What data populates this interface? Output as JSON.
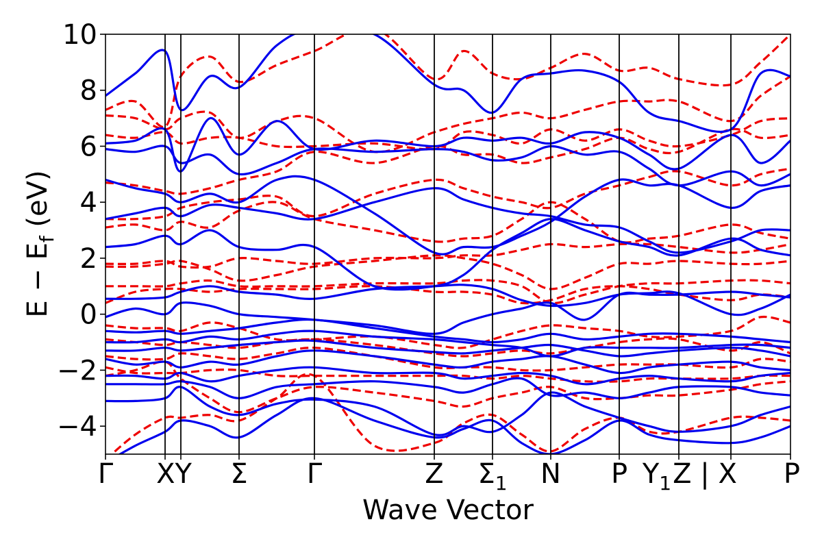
{
  "chart_data": {
    "type": "line",
    "title": "",
    "xlabel": "Wave Vector",
    "ylabel": "E − E_f (eV)",
    "ylabel_parts": {
      "main": "E − E",
      "sub": "f",
      "unit": " (eV)"
    },
    "ylim": [
      -5,
      10
    ],
    "yticks": [
      -4,
      -2,
      0,
      2,
      4,
      6,
      8,
      10
    ],
    "ytick_labels": [
      "−4",
      "−2",
      "0",
      "2",
      "4",
      "6",
      "8",
      "10"
    ],
    "xlim": [
      0,
      10
    ],
    "high_symmetry_points": [
      {
        "label": "Γ",
        "x": 0.0
      },
      {
        "label": "X",
        "x": 0.87
      },
      {
        "label": "Y",
        "x": 1.1
      },
      {
        "label": "Σ",
        "x": 1.95
      },
      {
        "label": "Γ",
        "x": 3.05
      },
      {
        "label": "Z",
        "x": 4.8
      },
      {
        "label": "Σ₁",
        "x": 5.65
      },
      {
        "label": "N",
        "x": 6.5
      },
      {
        "label": "P",
        "x": 7.5
      },
      {
        "label": "Y₁",
        "x": 8.37
      },
      {
        "label": "Z",
        "x": 8.37
      },
      {
        "label": "X",
        "x": 9.13
      },
      {
        "label": "P",
        "x": 10.0
      }
    ],
    "xtick_labels_display": [
      {
        "text": "Γ",
        "x": 0.0
      },
      {
        "text": "XY",
        "x": 1.0
      },
      {
        "text": "Σ",
        "x": 1.95
      },
      {
        "text": "Γ",
        "x": 3.05
      },
      {
        "text": "Z",
        "x": 4.8
      },
      {
        "text": "Σ",
        "sub": "1",
        "x": 5.65
      },
      {
        "text": "N",
        "x": 6.5
      },
      {
        "text": "P",
        "x": 7.5
      },
      {
        "text": "Y",
        "sub": "1",
        "x": 8.05
      },
      {
        "text": "Z | X",
        "x": 8.75
      },
      {
        "text": "P",
        "x": 10.0
      }
    ],
    "vlines": [
      0.87,
      1.1,
      1.95,
      3.05,
      4.8,
      5.65,
      6.5,
      7.5,
      8.37,
      9.13
    ],
    "x": [
      0.0,
      0.435,
      0.87,
      1.1,
      1.525,
      1.95,
      2.5,
      3.05,
      3.925,
      4.8,
      5.225,
      5.65,
      6.075,
      6.5,
      7.0,
      7.5,
      7.935,
      8.37,
      9.13,
      9.565,
      10.0
    ],
    "series": [
      {
        "style": "solid",
        "color": "#0000ee",
        "values": [
          -5.3,
          -4.7,
          -4.2,
          -3.8,
          -4.0,
          -4.4,
          -3.6,
          -3.0,
          -3.8,
          -4.4,
          -4.1,
          -3.8,
          -4.6,
          -5.0,
          -4.5,
          -3.8,
          -4.3,
          -4.5,
          -4.6,
          -4.4,
          -4.0
        ]
      },
      {
        "style": "solid",
        "color": "#0000ee",
        "values": [
          -3.1,
          -3.1,
          -3.0,
          -2.6,
          -3.3,
          -3.6,
          -3.2,
          -3.05,
          -3.3,
          -4.3,
          -4.0,
          -4.2,
          -3.6,
          -2.8,
          -3.3,
          -3.7,
          -4.0,
          -4.2,
          -4.0,
          -3.6,
          -3.3
        ]
      },
      {
        "style": "solid",
        "color": "#0000ee",
        "values": [
          -2.5,
          -2.5,
          -2.5,
          -2.4,
          -2.6,
          -3.0,
          -2.6,
          -2.5,
          -2.4,
          -2.6,
          -2.8,
          -2.5,
          -2.3,
          -2.9,
          -2.8,
          -3.0,
          -2.8,
          -2.6,
          -2.6,
          -2.8,
          -2.9
        ]
      },
      {
        "style": "solid",
        "color": "#0000ee",
        "values": [
          -2.2,
          -2.2,
          -2.3,
          -2.1,
          -2.4,
          -2.2,
          -2.0,
          -1.9,
          -2.1,
          -2.1,
          -2.3,
          -2.2,
          -2.1,
          -2.2,
          -2.5,
          -2.3,
          -2.2,
          -2.3,
          -2.4,
          -2.2,
          -2.1
        ]
      },
      {
        "style": "solid",
        "color": "#0000ee",
        "values": [
          -1.6,
          -1.8,
          -1.7,
          -1.9,
          -1.7,
          -1.8,
          -1.5,
          -1.3,
          -1.5,
          -1.8,
          -1.9,
          -1.7,
          -1.6,
          -1.5,
          -1.8,
          -2.1,
          -1.9,
          -1.8,
          -1.7,
          -1.9,
          -2.0
        ]
      },
      {
        "style": "solid",
        "color": "#0000ee",
        "values": [
          -1.3,
          -1.3,
          -1.2,
          -1.3,
          -1.2,
          -1.1,
          -1.0,
          -0.95,
          -1.2,
          -1.35,
          -1.4,
          -1.3,
          -1.2,
          -1.1,
          -1.3,
          -1.5,
          -1.4,
          -1.3,
          -1.2,
          -1.3,
          -1.5
        ]
      },
      {
        "style": "solid",
        "color": "#0000ee",
        "values": [
          -1.0,
          -1.0,
          -0.9,
          -1.0,
          -0.8,
          -0.9,
          -0.7,
          -0.6,
          -0.8,
          -0.9,
          -1.0,
          -1.1,
          -1.2,
          -1.5,
          -1.2,
          -1.2,
          -1.2,
          -1.2,
          -1.1,
          -1.1,
          -1.2
        ]
      },
      {
        "style": "solid",
        "color": "#0000ee",
        "values": [
          -0.6,
          -0.65,
          -0.6,
          -0.7,
          -0.6,
          -0.5,
          -0.3,
          -0.2,
          -0.5,
          -0.8,
          -0.9,
          -1.0,
          -0.9,
          -0.7,
          -0.9,
          -0.8,
          -0.7,
          -0.7,
          -0.8,
          -0.9,
          -1.0
        ]
      },
      {
        "style": "solid",
        "color": "#0000ee",
        "values": [
          -0.1,
          0.2,
          0.0,
          0.4,
          0.3,
          0.0,
          -0.1,
          -0.2,
          -0.4,
          -0.7,
          -0.3,
          0.0,
          0.2,
          0.4,
          -0.2,
          0.7,
          0.7,
          0.7,
          0.8,
          0.7,
          0.6
        ]
      },
      {
        "style": "solid",
        "color": "#0000ee",
        "values": [
          0.55,
          0.55,
          0.6,
          0.8,
          1.0,
          0.8,
          0.7,
          0.55,
          0.9,
          1.0,
          1.05,
          0.9,
          0.5,
          0.3,
          0.4,
          0.7,
          0.75,
          0.75,
          0.0,
          0.2,
          0.7
        ]
      },
      {
        "style": "solid",
        "color": "#0000ee",
        "values": [
          2.4,
          2.5,
          2.8,
          2.5,
          3.0,
          2.4,
          2.3,
          2.4,
          1.0,
          1.0,
          1.4,
          2.3,
          2.9,
          3.4,
          3.0,
          2.6,
          2.4,
          2.1,
          2.7,
          2.3,
          2.1
        ]
      },
      {
        "style": "solid",
        "color": "#0000ee",
        "values": [
          3.4,
          3.6,
          3.8,
          3.5,
          3.9,
          3.8,
          3.6,
          3.4,
          4.0,
          4.5,
          4.1,
          3.8,
          3.6,
          3.5,
          3.2,
          3.1,
          2.6,
          2.2,
          2.6,
          3.0,
          3.0
        ]
      },
      {
        "style": "solid",
        "color": "#0000ee",
        "values": [
          4.8,
          4.5,
          4.3,
          4.0,
          4.3,
          4.0,
          4.8,
          4.8,
          3.6,
          2.2,
          2.4,
          2.4,
          2.8,
          3.3,
          4.2,
          4.8,
          4.6,
          4.6,
          3.8,
          4.4,
          4.6
        ]
      },
      {
        "style": "solid",
        "color": "#0000ee",
        "values": [
          5.9,
          5.8,
          6.0,
          5.4,
          5.7,
          5.0,
          5.4,
          5.9,
          5.8,
          5.9,
          5.8,
          5.5,
          5.6,
          6.0,
          5.7,
          5.8,
          5.2,
          4.6,
          5.1,
          4.6,
          5.0
        ]
      },
      {
        "style": "solid",
        "color": "#0000ee",
        "values": [
          6.1,
          6.2,
          6.6,
          5.1,
          7.0,
          5.7,
          6.9,
          5.9,
          6.2,
          6.0,
          6.3,
          6.2,
          6.3,
          6.1,
          6.5,
          6.3,
          5.7,
          5.2,
          6.4,
          5.4,
          6.2
        ]
      },
      {
        "style": "solid",
        "color": "#0000ee",
        "values": [
          7.8,
          8.6,
          9.4,
          7.3,
          8.5,
          8.1,
          9.6,
          10.2,
          10.0,
          8.2,
          8.0,
          7.2,
          8.4,
          8.6,
          8.7,
          8.3,
          7.2,
          6.9,
          6.6,
          8.6,
          8.5
        ]
      },
      {
        "style": "dashed",
        "color": "#ee0000",
        "values": [
          -5.2,
          -4.3,
          -3.7,
          -3.7,
          -3.6,
          -3.8,
          -3.0,
          -2.2,
          -4.7,
          -4.6,
          -3.9,
          -3.6,
          -4.3,
          -4.9,
          -4.1,
          -3.7,
          -4.2,
          -4.2,
          -3.7,
          -3.7,
          -3.8
        ]
      },
      {
        "style": "dashed",
        "color": "#ee0000",
        "values": [
          -2.2,
          -2.0,
          -1.7,
          -2.3,
          -3.0,
          -3.5,
          -3.0,
          -2.6,
          -2.8,
          -3.1,
          -3.3,
          -3.0,
          -2.8,
          -2.6,
          -3.0,
          -3.0,
          -2.9,
          -2.9,
          -2.7,
          -2.5,
          -2.4
        ]
      },
      {
        "style": "dashed",
        "color": "#ee0000",
        "values": [
          -1.9,
          -2.1,
          -2.1,
          -2.1,
          -2.0,
          -2.0,
          -2.2,
          -2.2,
          -2.2,
          -2.2,
          -2.2,
          -2.3,
          -2.2,
          -2.3,
          -2.4,
          -2.4,
          -2.3,
          -2.3,
          -2.3,
          -2.2,
          -2.2
        ]
      },
      {
        "style": "dashed",
        "color": "#ee0000",
        "values": [
          -1.5,
          -1.6,
          -1.6,
          -1.4,
          -1.5,
          -1.6,
          -1.4,
          -1.2,
          -1.5,
          -1.9,
          -1.9,
          -1.9,
          -2.0,
          -2.0,
          -1.9,
          -1.8,
          -1.8,
          -1.8,
          -1.9,
          -1.6,
          -1.7
        ]
      },
      {
        "style": "dashed",
        "color": "#ee0000",
        "values": [
          -0.9,
          -1.0,
          -1.1,
          -1.0,
          -1.1,
          -1.2,
          -1.0,
          -0.9,
          -1.1,
          -1.4,
          -1.5,
          -1.4,
          -1.3,
          -1.4,
          -1.2,
          -1.0,
          -0.9,
          -0.9,
          -1.3,
          -1.0,
          -1.4
        ]
      },
      {
        "style": "dashed",
        "color": "#ee0000",
        "values": [
          -0.4,
          -0.5,
          -0.5,
          -0.6,
          -0.3,
          -0.5,
          -0.9,
          -0.9,
          -0.8,
          -1.1,
          -1.2,
          -0.9,
          -0.6,
          -0.4,
          -0.5,
          -0.6,
          -0.8,
          -0.8,
          -0.6,
          -0.1,
          -0.3
        ]
      },
      {
        "style": "dashed",
        "color": "#ee0000",
        "values": [
          0.4,
          0.8,
          0.9,
          0.9,
          0.8,
          0.9,
          0.9,
          0.9,
          1.0,
          0.8,
          0.8,
          0.7,
          0.4,
          0.5,
          0.9,
          1.0,
          0.9,
          0.7,
          0.5,
          0.7,
          0.6
        ]
      },
      {
        "style": "dashed",
        "color": "#ee0000",
        "values": [
          1.0,
          1.0,
          1.0,
          1.1,
          1.2,
          1.0,
          1.0,
          1.0,
          1.1,
          1.1,
          1.2,
          1.2,
          1.0,
          0.4,
          0.7,
          1.0,
          1.1,
          1.1,
          1.2,
          1.2,
          1.1
        ]
      },
      {
        "style": "dashed",
        "color": "#ee0000",
        "values": [
          1.7,
          1.7,
          1.8,
          1.9,
          1.6,
          1.2,
          1.4,
          1.7,
          1.9,
          2.1,
          2.0,
          1.8,
          1.4,
          0.9,
          1.3,
          1.8,
          1.8,
          1.9,
          1.8,
          1.8,
          1.9
        ]
      },
      {
        "style": "dashed",
        "color": "#ee0000",
        "values": [
          1.8,
          1.8,
          1.9,
          1.7,
          1.7,
          2.0,
          1.9,
          1.8,
          2.0,
          2.0,
          2.1,
          2.1,
          2.3,
          2.5,
          2.4,
          2.5,
          2.5,
          2.4,
          2.2,
          2.3,
          2.5
        ]
      },
      {
        "style": "dashed",
        "color": "#ee0000",
        "values": [
          3.1,
          3.2,
          3.0,
          3.3,
          3.1,
          3.7,
          4.0,
          3.4,
          3.0,
          2.6,
          2.7,
          2.8,
          3.4,
          4.0,
          3.4,
          2.6,
          2.7,
          2.8,
          3.2,
          2.9,
          2.7
        ]
      },
      {
        "style": "dashed",
        "color": "#ee0000",
        "values": [
          3.4,
          3.4,
          3.5,
          3.8,
          4.0,
          4.1,
          4.2,
          3.5,
          4.3,
          4.8,
          4.5,
          4.2,
          4.0,
          3.8,
          4.3,
          4.6,
          4.9,
          5.1,
          4.6,
          5.0,
          5.2
        ]
      },
      {
        "style": "dashed",
        "color": "#ee0000",
        "values": [
          4.7,
          4.6,
          4.4,
          4.3,
          4.5,
          4.8,
          5.1,
          5.8,
          5.4,
          6.0,
          5.7,
          5.7,
          5.4,
          5.6,
          5.9,
          6.3,
          5.9,
          5.8,
          6.6,
          6.3,
          6.4
        ]
      },
      {
        "style": "dashed",
        "color": "#ee0000",
        "values": [
          6.4,
          6.3,
          6.5,
          6.1,
          6.3,
          6.3,
          6.0,
          6.0,
          6.1,
          5.9,
          6.5,
          6.4,
          6.1,
          6.6,
          6.2,
          6.6,
          6.2,
          6.0,
          6.4,
          6.9,
          7.0
        ]
      },
      {
        "style": "dashed",
        "color": "#ee0000",
        "values": [
          7.1,
          7.0,
          6.6,
          7.0,
          7.2,
          6.3,
          6.9,
          7.0,
          5.8,
          6.5,
          6.8,
          7.0,
          7.2,
          7.0,
          7.3,
          7.6,
          7.6,
          7.6,
          6.9,
          7.8,
          8.5
        ]
      },
      {
        "style": "dashed",
        "color": "#ee0000",
        "values": [
          7.3,
          7.6,
          6.7,
          8.5,
          9.2,
          8.3,
          8.9,
          9.4,
          10.2,
          8.4,
          9.4,
          8.6,
          8.4,
          8.8,
          9.3,
          8.7,
          8.8,
          8.4,
          8.2,
          9.0,
          10.0
        ]
      }
    ]
  }
}
